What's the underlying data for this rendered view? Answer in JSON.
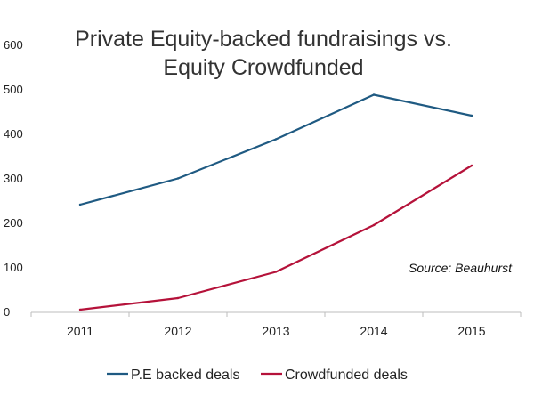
{
  "chart_data": {
    "type": "line",
    "title_lines": [
      "Private Equity-backed fundraisings vs.",
      "Equity Crowdfunded"
    ],
    "categories": [
      "2011",
      "2012",
      "2013",
      "2014",
      "2015"
    ],
    "y_ticks": [
      "0",
      "100",
      "200",
      "300",
      "400",
      "500",
      "600"
    ],
    "ylim": [
      0,
      600
    ],
    "grid": false,
    "legend_position": "bottom",
    "annotation": "Source: Beauhurst",
    "series": [
      {
        "name": "P.E backed deals",
        "color": "#1f5a82",
        "values": [
          242,
          301,
          389,
          489,
          442
        ]
      },
      {
        "name": "Crowdfunded deals",
        "color": "#b5123a",
        "values": [
          6,
          32,
          91,
          196,
          330
        ]
      }
    ]
  }
}
